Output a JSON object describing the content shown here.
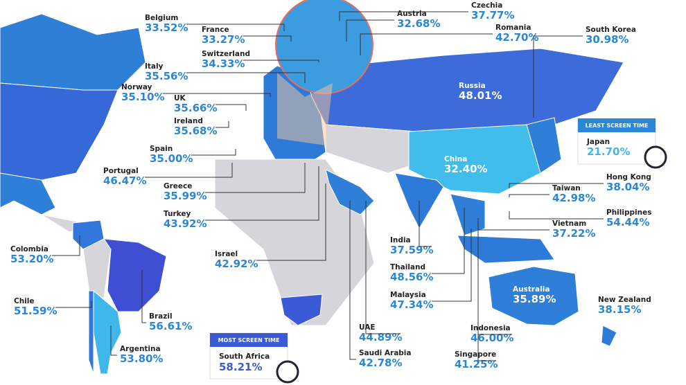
{
  "callouts": [
    {
      "badge": "LEAST SCREEN TIME",
      "country": "Japan",
      "value": "21.70%"
    },
    {
      "badge": "MOST SCREEN TIME",
      "country": "South Africa",
      "value": "58.21%"
    }
  ],
  "labels": [
    {
      "country": "Belgium",
      "value": "33.52%"
    },
    {
      "country": "France",
      "value": "33.27%"
    },
    {
      "country": "Austria",
      "value": "32.68%"
    },
    {
      "country": "Czechia",
      "value": "37.77%"
    },
    {
      "country": "Romania",
      "value": "42.70%"
    },
    {
      "country": "South Korea",
      "value": "30.98%"
    },
    {
      "country": "Switzerland",
      "value": "34.33%"
    },
    {
      "country": "Italy",
      "value": "35.56%"
    },
    {
      "country": "Norway",
      "value": "35.10%"
    },
    {
      "country": "Russia",
      "value": "48.01%"
    },
    {
      "country": "UK",
      "value": "35.66%"
    },
    {
      "country": "Ireland",
      "value": "35.68%"
    },
    {
      "country": "Spain",
      "value": "35.00%"
    },
    {
      "country": "Portugal",
      "value": "46.47%"
    },
    {
      "country": "China",
      "value": "32.40%"
    },
    {
      "country": "Hong Kong",
      "value": "38.04%"
    },
    {
      "country": "Taiwan",
      "value": "42.98%"
    },
    {
      "country": "Philippines",
      "value": "54.44%"
    },
    {
      "country": "Vietnam",
      "value": "37.22%"
    },
    {
      "country": "Greece",
      "value": "35.99%"
    },
    {
      "country": "Turkey",
      "value": "43.92%"
    },
    {
      "country": "Colombia",
      "value": "53.20%"
    },
    {
      "country": "India",
      "value": "37.59%"
    },
    {
      "country": "Israel",
      "value": "42.92%"
    },
    {
      "country": "Thailand",
      "value": "48.56%"
    },
    {
      "country": "Chile",
      "value": "51.59%"
    },
    {
      "country": "Malaysia",
      "value": "47.34%"
    },
    {
      "country": "Australia",
      "value": "35.89%"
    },
    {
      "country": "New Zealand",
      "value": "38.15%"
    },
    {
      "country": "Brazil",
      "value": "56.61%"
    },
    {
      "country": "UAE",
      "value": "44.89%"
    },
    {
      "country": "Indonesia",
      "value": "46.00%"
    },
    {
      "country": "Argentina",
      "value": "53.80%"
    },
    {
      "country": "Saudi Arabia",
      "value": "42.78%"
    },
    {
      "country": "Singapore",
      "value": "41.25%"
    }
  ]
}
